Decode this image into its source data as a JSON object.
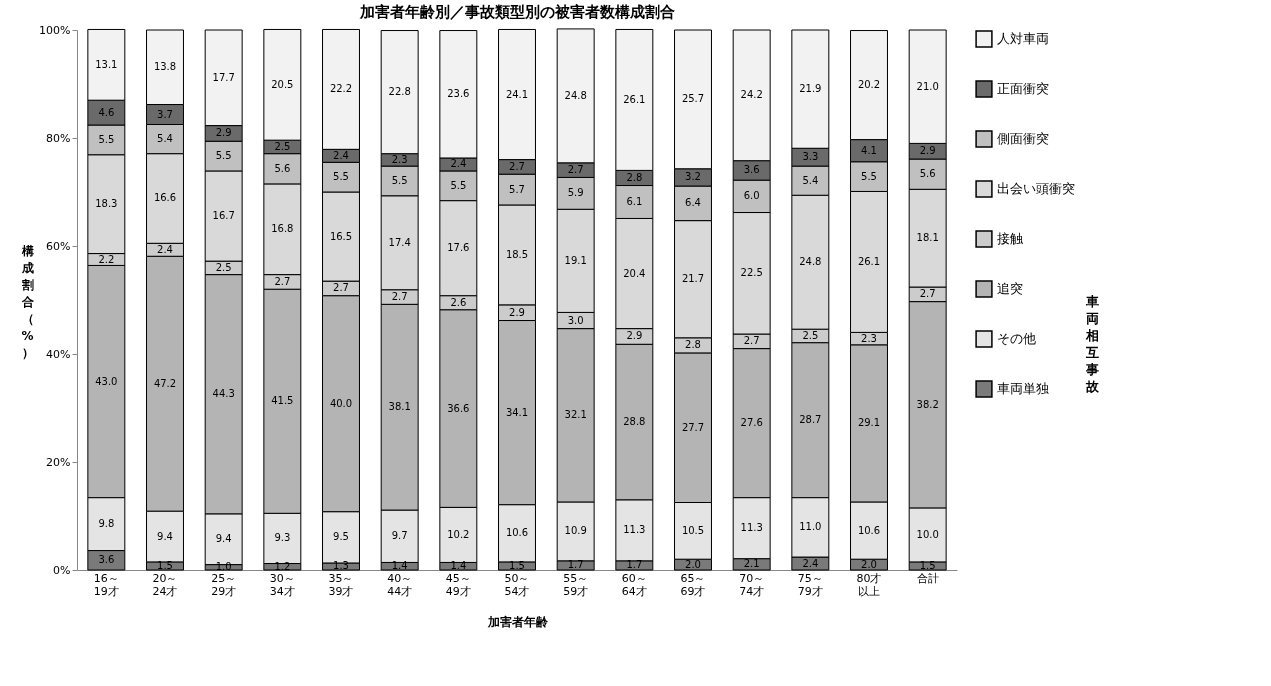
{
  "chart_data": {
    "type": "bar",
    "stacked": true,
    "title": "加害者年齢別／事故類型別の被害者数構成割合",
    "xlabel": "加害者年齢",
    "ylabel": "構成割合（%）",
    "categories": [
      "16～19才",
      "20～24才",
      "25～29才",
      "30～34才",
      "35～39才",
      "40～44才",
      "45～49才",
      "50～54才",
      "55～59才",
      "60～64才",
      "65～69才",
      "70～74才",
      "75～79才",
      "80才以上",
      "合計"
    ],
    "series": [
      {
        "name": "車両単独",
        "color": "#7a7a7a",
        "values": [
          3.6,
          1.5,
          1.0,
          1.2,
          1.3,
          1.4,
          1.4,
          1.5,
          1.7,
          1.7,
          2.0,
          2.1,
          2.4,
          2.0,
          1.5
        ],
        "value_labels": [
          "3.6",
          "1.5",
          "1.0",
          "1.2",
          "1.3",
          "1.4",
          "1.4",
          "1.5",
          "1.7",
          "1.7",
          "2.0",
          "2.1",
          "2.4",
          "2.0",
          "1.5"
        ]
      },
      {
        "name": "その他",
        "color": "#e4e4e4",
        "values": [
          9.8,
          9.4,
          9.4,
          9.3,
          9.5,
          9.7,
          10.2,
          10.6,
          10.9,
          11.3,
          10.5,
          11.3,
          11.0,
          10.6,
          10.0
        ],
        "value_labels": [
          "9.8",
          "9.4",
          "9.4",
          "9.3",
          "9.5",
          "9.7",
          "10.2",
          "10.6",
          "10.9",
          "11.3",
          "10.5",
          "11.3",
          "11.0",
          "10.6",
          "10.0"
        ]
      },
      {
        "name": "追突",
        "color": "#b4b4b4",
        "values": [
          43.0,
          47.2,
          44.3,
          41.5,
          40.0,
          38.1,
          36.6,
          34.1,
          32.1,
          28.8,
          27.7,
          27.6,
          28.7,
          29.1,
          38.2
        ],
        "value_labels": [
          "43.0",
          "47.2",
          "44.3",
          "41.5",
          "40.0",
          "38.1",
          "36.6",
          "34.1",
          "32.1",
          "28.8",
          "27.7",
          "27.6",
          "28.7",
          "29.1",
          "38.2"
        ]
      },
      {
        "name": "接触",
        "color": "#cccccc",
        "values": [
          2.2,
          2.4,
          2.5,
          2.7,
          2.7,
          2.7,
          2.6,
          2.9,
          3.0,
          2.9,
          2.8,
          2.7,
          2.5,
          2.3,
          2.7
        ],
        "value_labels": [
          "2.2",
          "2.4",
          "2.5",
          "2.7",
          "2.7",
          "2.7",
          "2.6",
          "2.9",
          "3.0",
          "2.9",
          "2.8",
          "2.7",
          "2.5",
          "2.3",
          "2.7"
        ]
      },
      {
        "name": "出会い頭衝突",
        "color": "#d9d9d9",
        "values": [
          18.3,
          16.6,
          16.7,
          16.8,
          16.5,
          17.4,
          17.6,
          18.5,
          19.1,
          20.4,
          21.7,
          22.5,
          24.8,
          26.1,
          18.1
        ],
        "value_labels": [
          "18.3",
          "16.6",
          "16.7",
          "16.8",
          "16.5",
          "17.4",
          "17.6",
          "18.5",
          "19.1",
          "20.4",
          "21.7",
          "22.5",
          "24.8",
          "26.1",
          "18.1"
        ]
      },
      {
        "name": "側面衝突",
        "color": "#c0c0c0",
        "values": [
          5.5,
          5.4,
          5.5,
          5.6,
          5.5,
          5.5,
          5.5,
          5.7,
          5.9,
          6.1,
          6.4,
          6.0,
          5.4,
          5.5,
          5.6
        ],
        "value_labels": [
          "5.5",
          "5.4",
          "5.5",
          "5.6",
          "5.5",
          "5.5",
          "5.5",
          "5.7",
          "5.9",
          "6.1",
          "6.4",
          "6.0",
          "5.4",
          "5.5",
          "5.6"
        ]
      },
      {
        "name": "正面衝突",
        "color": "#6a6a6a",
        "values": [
          4.6,
          3.7,
          2.9,
          2.5,
          2.4,
          2.3,
          2.4,
          2.7,
          2.7,
          2.8,
          3.2,
          3.6,
          3.3,
          4.1,
          2.9
        ],
        "value_labels": [
          "4.6",
          "3.7",
          "2.9",
          "2.5",
          "2.4",
          "2.3",
          "2.4",
          "2.7",
          "2.7",
          "2.8",
          "3.2",
          "3.6",
          "3.3",
          "4.1",
          "2.9"
        ]
      },
      {
        "name": "人対車両",
        "color": "#f2f2f2",
        "values": [
          13.1,
          13.8,
          17.7,
          20.5,
          22.2,
          22.8,
          23.6,
          24.1,
          24.8,
          26.1,
          25.7,
          24.2,
          21.9,
          20.2,
          21.0
        ],
        "value_labels": [
          "13.1",
          "13.8",
          "17.7",
          "20.5",
          "22.2",
          "22.8",
          "23.6",
          "24.1",
          "24.8",
          "26.1",
          "25.7",
          "24.2",
          "21.9",
          "20.2",
          "21.0"
        ]
      }
    ],
    "ylim": [
      0,
      100
    ],
    "yticks": [
      {
        "value": 0,
        "label": "0%"
      },
      {
        "value": 20,
        "label": "20%"
      },
      {
        "value": 40,
        "label": "40%"
      },
      {
        "value": 60,
        "label": "60%"
      },
      {
        "value": 80,
        "label": "80%"
      },
      {
        "value": 100,
        "label": "100%"
      }
    ],
    "legend": "right",
    "annotations": [
      "車両相互事故"
    ]
  }
}
